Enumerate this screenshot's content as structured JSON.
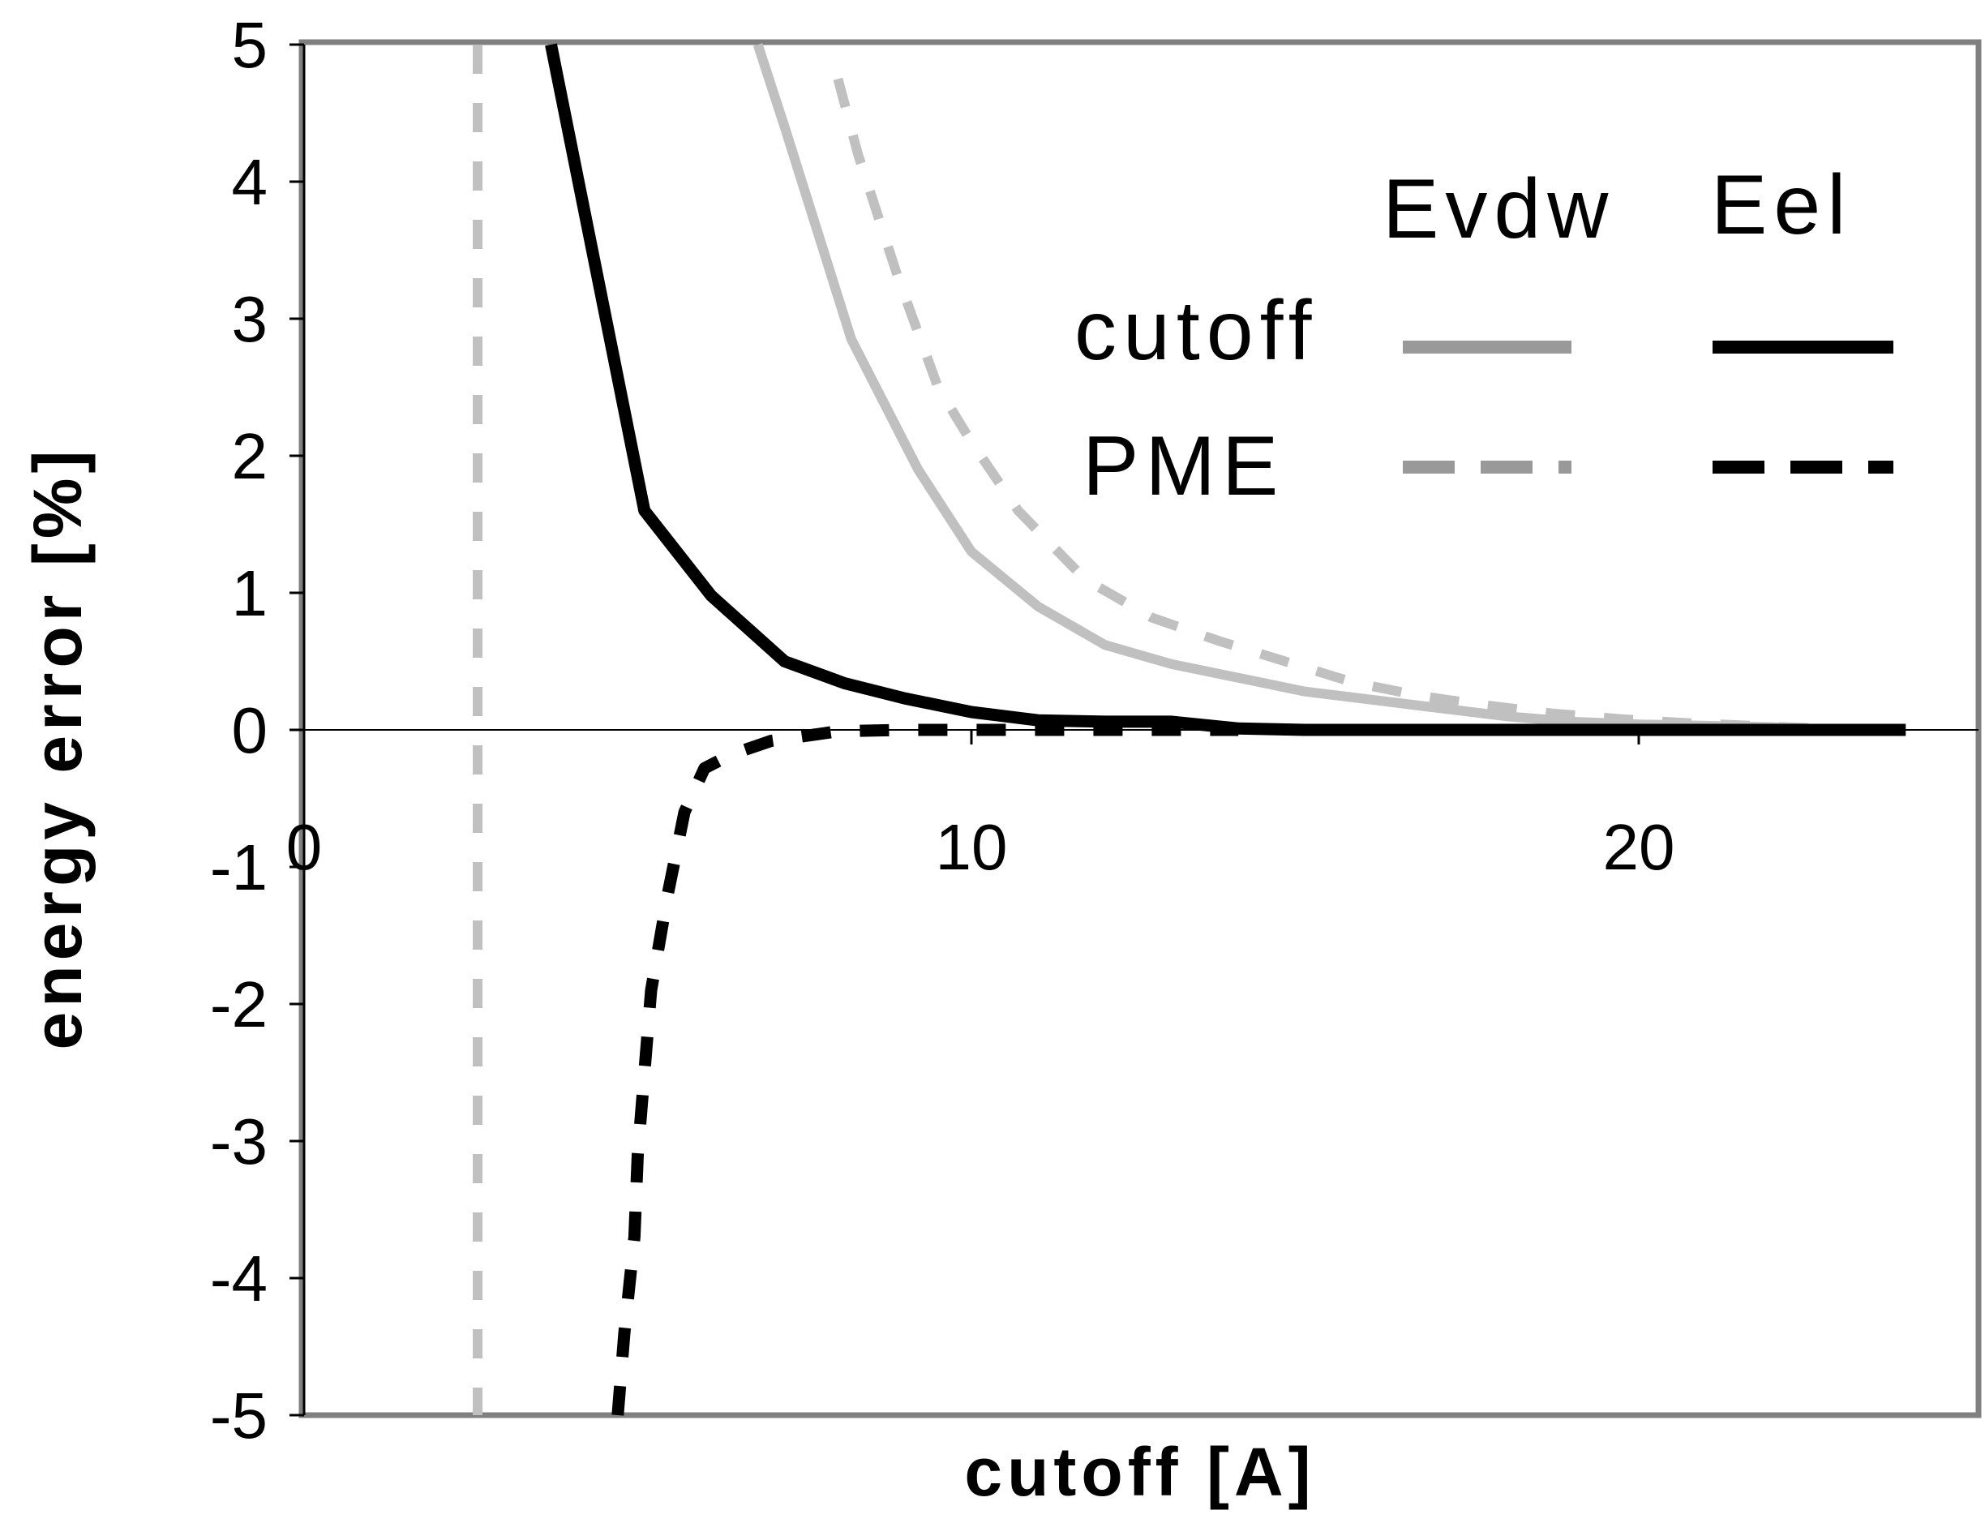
{
  "chart_data": {
    "type": "line",
    "title": "",
    "xlabel": "cutoff [A]",
    "ylabel": "energy error [%]",
    "xlim": [
      0,
      25
    ],
    "ylim": [
      -5,
      5
    ],
    "x_ticks": [
      "0",
      "10",
      "20"
    ],
    "x_tick_values": [
      0,
      10,
      20
    ],
    "y_ticks": [
      "5",
      "4",
      "3",
      "2",
      "1",
      "0",
      "-1",
      "-2",
      "-3",
      "-4",
      "-5"
    ],
    "y_tick_values": [
      5,
      4,
      3,
      2,
      1,
      0,
      -1,
      -2,
      -3,
      -4,
      -5
    ],
    "grid": false,
    "legend": {
      "position": "top-right",
      "column_headers": [
        "Evdw",
        "Eel"
      ],
      "row_labels": [
        "cutoff",
        "PME"
      ]
    },
    "series": [
      {
        "name": "Evdw cutoff",
        "color": "#c0c0c0",
        "dash": "solid",
        "x": [
          6.8,
          7.2,
          8.2,
          9.2,
          10.0,
          11.0,
          12.0,
          13.0,
          14.0,
          15.0,
          16.0,
          17.0,
          18.0,
          19.0,
          20.0,
          21.0,
          22.0,
          23.0,
          24.0
        ],
        "y": [
          5.0,
          4.4,
          2.85,
          1.9,
          1.3,
          0.9,
          0.62,
          0.48,
          0.38,
          0.28,
          0.22,
          0.16,
          0.1,
          0.06,
          0.04,
          0.03,
          0.02,
          0.0,
          0.0
        ]
      },
      {
        "name": "Evdw PME",
        "color": "#c0c0c0",
        "dash": "dashed",
        "x": [
          2.6,
          2.6
        ],
        "y": [
          5.0,
          -5.0
        ]
      },
      {
        "name": "Evdw PME",
        "color": "#c0c0c0",
        "dash": "dashed",
        "x": [
          8.0,
          8.3,
          8.9,
          9.5,
          10.0,
          10.7,
          11.7,
          12.7,
          13.7,
          14.7,
          15.7,
          16.7,
          17.7,
          18.7,
          19.7,
          20.7,
          21.7,
          22.7,
          24.0
        ],
        "y": [
          4.75,
          4.2,
          3.3,
          2.5,
          2.1,
          1.6,
          1.1,
          0.82,
          0.65,
          0.5,
          0.35,
          0.25,
          0.18,
          0.12,
          0.08,
          0.05,
          0.03,
          0.01,
          0.0
        ]
      },
      {
        "name": "Eel cutoff",
        "color": "#000000",
        "dash": "solid",
        "x": [
          3.7,
          5.1,
          6.1,
          7.2,
          8.1,
          9.0,
          10.0,
          11.0,
          12.0,
          13.0,
          14.0,
          15.0,
          17.0,
          20.0,
          24.0
        ],
        "y": [
          5.0,
          1.6,
          0.98,
          0.5,
          0.34,
          0.23,
          0.13,
          0.07,
          0.06,
          0.06,
          0.01,
          0.0,
          0.0,
          0.0,
          0.0
        ]
      },
      {
        "name": "Eel PME",
        "color": "#000000",
        "dash": "dashed",
        "x": [
          4.7,
          4.8,
          4.95,
          5.0,
          5.1,
          5.2,
          5.45,
          5.7,
          6.0,
          6.4,
          7.0,
          8.0,
          9.0,
          10.0,
          11.0,
          12.0,
          14.0
        ],
        "y": [
          -5.0,
          -4.4,
          -3.7,
          -3.1,
          -2.5,
          -1.9,
          -1.2,
          -0.6,
          -0.28,
          -0.18,
          -0.08,
          -0.01,
          0.0,
          0.0,
          0.0,
          0.0,
          0.0
        ]
      }
    ]
  }
}
